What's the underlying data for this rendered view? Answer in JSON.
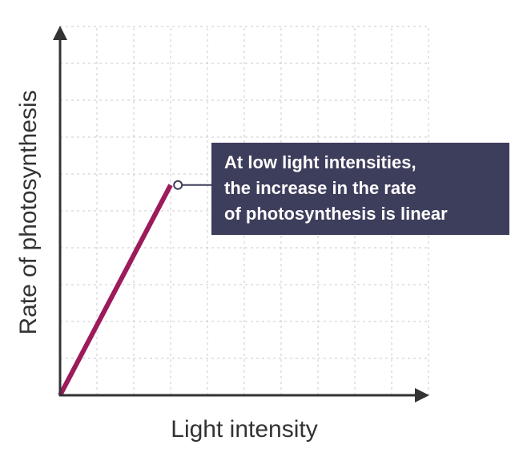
{
  "chart_data": {
    "type": "line",
    "title": "",
    "xlabel": "Light intensity",
    "ylabel": "Rate of photosynthesis",
    "xlim": [
      0,
      10
    ],
    "ylim": [
      0,
      10
    ],
    "grid": true,
    "legend": "none",
    "series": [
      {
        "color": "#9c1b5a",
        "x": [
          0,
          3
        ],
        "y": [
          0,
          5.7
        ]
      }
    ],
    "annotations": [
      {
        "x": 3.2,
        "y": 5.7,
        "text_lines": [
          "At low light intensities,",
          "the increase in the rate",
          "of photosynthesis is linear"
        ],
        "box_color": "#3d3d5c",
        "text_color": "#ffffff"
      }
    ],
    "axis_color": "#333333",
    "grid_color": "#c9c9d6"
  }
}
